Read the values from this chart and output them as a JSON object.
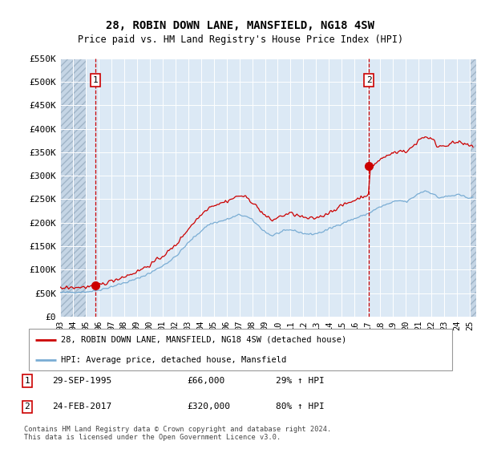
{
  "title": "28, ROBIN DOWN LANE, MANSFIELD, NG18 4SW",
  "subtitle": "Price paid vs. HM Land Registry's House Price Index (HPI)",
  "ylim": [
    0,
    550000
  ],
  "yticks": [
    0,
    50000,
    100000,
    150000,
    200000,
    250000,
    300000,
    350000,
    400000,
    450000,
    500000,
    550000
  ],
  "xlim_start": 1993.0,
  "xlim_end": 2025.5,
  "xtick_years": [
    1993,
    1994,
    1995,
    1996,
    1997,
    1998,
    1999,
    2000,
    2001,
    2002,
    2003,
    2004,
    2005,
    2006,
    2007,
    2008,
    2009,
    2010,
    2011,
    2012,
    2013,
    2014,
    2015,
    2016,
    2017,
    2018,
    2019,
    2020,
    2021,
    2022,
    2023,
    2024,
    2025
  ],
  "plot_bg": "#dce9f5",
  "hatch_bg": "#c5d5e5",
  "grid_color": "#ffffff",
  "line1_color": "#cc0000",
  "line2_color": "#7aadd4",
  "purchase1_x": 1995.75,
  "purchase1_y": 66000,
  "purchase2_x": 2017.12,
  "purchase2_y": 320000,
  "vline1_x": 1995.75,
  "vline2_x": 2017.12,
  "legend_line1": "28, ROBIN DOWN LANE, MANSFIELD, NG18 4SW (detached house)",
  "legend_line2": "HPI: Average price, detached house, Mansfield",
  "note1_num": "1",
  "note1_date": "29-SEP-1995",
  "note1_price": "£66,000",
  "note1_hpi": "29% ↑ HPI",
  "note2_num": "2",
  "note2_date": "24-FEB-2017",
  "note2_price": "£320,000",
  "note2_hpi": "80% ↑ HPI",
  "footer": "Contains HM Land Registry data © Crown copyright and database right 2024.\nThis data is licensed under the Open Government Licence v3.0."
}
